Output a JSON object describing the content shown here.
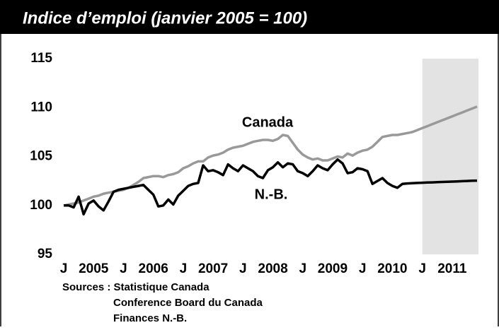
{
  "chart_data": {
    "type": "line",
    "title": "Indice d’emploi (janvier 2005 = 100)",
    "categories": [
      "J",
      null,
      null,
      null,
      null,
      null,
      "2005",
      null,
      null,
      null,
      null,
      null,
      "J",
      null,
      null,
      null,
      null,
      null,
      "2006",
      null,
      null,
      null,
      null,
      null,
      "J",
      null,
      null,
      null,
      null,
      null,
      "2007",
      null,
      null,
      null,
      null,
      null,
      "J",
      null,
      null,
      null,
      null,
      null,
      "2008",
      null,
      null,
      null,
      null,
      null,
      "J",
      null,
      null,
      null,
      null,
      null,
      "2009",
      null,
      null,
      null,
      null,
      null,
      "J",
      null,
      null,
      null,
      null,
      null,
      "2010",
      null,
      null,
      null,
      null,
      null,
      "J",
      null,
      null,
      null,
      null,
      null,
      "2011",
      null,
      null,
      null,
      null,
      null
    ],
    "series": [
      {
        "name": "Canada",
        "color": "#999999",
        "values": [
          100,
          100.1,
          100.2,
          100.3,
          100.5,
          100.7,
          100.9,
          101.0,
          101.2,
          101.3,
          101.4,
          101.5,
          101.6,
          101.8,
          102.1,
          102.4,
          102.8,
          102.9,
          103.0,
          103.0,
          102.9,
          103.1,
          103.2,
          103.4,
          103.8,
          104.0,
          104.3,
          104.5,
          104.5,
          104.9,
          105.1,
          105.2,
          105.4,
          105.7,
          105.9,
          106.0,
          106.1,
          106.3,
          106.5,
          106.6,
          106.7,
          106.7,
          106.6,
          106.8,
          107.2,
          107.1,
          106.4,
          105.7,
          105.2,
          104.9,
          104.7,
          104.8,
          104.6,
          104.6,
          104.8,
          105.0,
          104.9,
          105.3,
          105.1,
          105.4,
          105.6,
          105.7,
          106.0,
          106.5,
          107.0,
          107.1,
          107.2,
          107.2,
          107.3,
          107.4,
          107.5,
          107.7,
          107.9,
          108.1,
          108.3,
          108.5,
          108.7,
          108.9,
          109.1,
          109.3,
          109.5,
          109.7,
          109.9,
          110.1
        ]
      },
      {
        "name": "N.-B.",
        "color": "#000000",
        "values": [
          100,
          100,
          99.8,
          100.9,
          99.1,
          100.2,
          100.5,
          99.9,
          99.5,
          100.4,
          101.4,
          101.6,
          101.7,
          101.8,
          101.9,
          102.0,
          102.1,
          101.6,
          101.1,
          99.9,
          100.0,
          100.6,
          100.1,
          101.0,
          101.5,
          102.0,
          102.2,
          102.3,
          104.1,
          103.5,
          103.6,
          103.4,
          103.1,
          104.2,
          103.8,
          103.5,
          104.1,
          103.8,
          103.5,
          103.0,
          102.8,
          103.6,
          103.9,
          104.4,
          103.9,
          104.3,
          104.2,
          103.5,
          103.3,
          103.0,
          103.5,
          104.1,
          103.8,
          103.6,
          104.2,
          104.7,
          104.3,
          103.3,
          103.4,
          103.8,
          103.7,
          103.5,
          102.2,
          102.5,
          102.8,
          102.3,
          102.0,
          101.8,
          102.2,
          102.25,
          102.27,
          102.3,
          102.32,
          102.34,
          102.36,
          102.38,
          102.4,
          102.42,
          102.44,
          102.46,
          102.48,
          102.5,
          102.52,
          102.54
        ]
      }
    ],
    "shaded_range": [
      72,
      83
    ],
    "ylim": [
      95,
      115
    ],
    "yticks": [
      95,
      100,
      105,
      110,
      115
    ],
    "grid": false,
    "sources": [
      "Sources : Statistique Canada",
      "Conference Board du Canada",
      "Finances N.-B."
    ]
  }
}
